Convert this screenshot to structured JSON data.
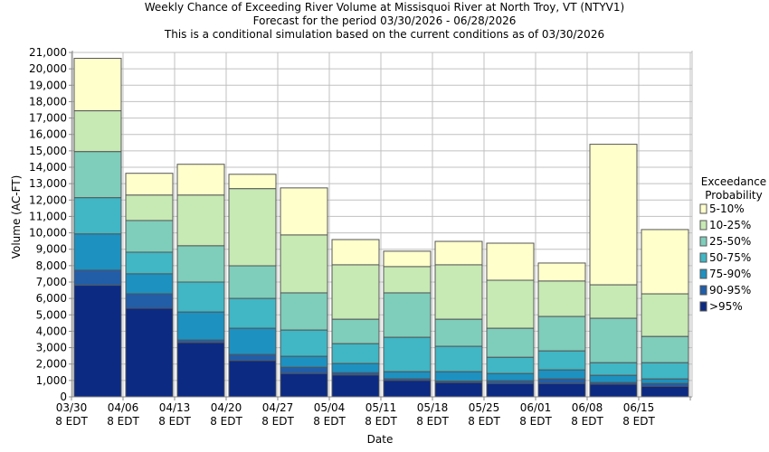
{
  "chart_data": {
    "type": "bar",
    "stacked": true,
    "title": "Weekly Chance of Exceeding River Volume at Missisquoi River at North Troy, VT (NTYV1)",
    "subtitle": [
      "Forecast for the period 03/30/2026 - 06/28/2026",
      "This is a conditional simulation based on the current conditions as of 03/30/2026"
    ],
    "xlabel": "Date",
    "ylabel": "Volume (AC-FT)",
    "ylim": [
      0,
      21000
    ],
    "yticks": [
      0,
      1000,
      2000,
      3000,
      4000,
      5000,
      6000,
      7000,
      8000,
      9000,
      10000,
      11000,
      12000,
      13000,
      14000,
      15000,
      16000,
      17000,
      18000,
      19000,
      20000,
      21000
    ],
    "ytick_labels": [
      "0",
      "1,000",
      "2,000",
      "3,000",
      "4,000",
      "5,000",
      "6,000",
      "7,000",
      "8,000",
      "9,000",
      "10,000",
      "11,000",
      "12,000",
      "13,000",
      "14,000",
      "15,000",
      "16,000",
      "17,000",
      "18,000",
      "19,000",
      "20,000",
      "21,000"
    ],
    "grid": true,
    "categories": [
      "03/30",
      "04/06",
      "04/13",
      "04/20",
      "04/27",
      "05/04",
      "05/11",
      "05/18",
      "05/25",
      "06/01",
      "06/08",
      "06/15"
    ],
    "xtick_labels": [
      "03/30",
      "04/06",
      "04/13",
      "04/20",
      "04/27",
      "05/04",
      "05/11",
      "05/18",
      "05/25",
      "06/01",
      "06/08",
      "06/15"
    ],
    "xtick_sublabel": "8 EDT",
    "legend": {
      "title": [
        "Exceedance",
        "Probability"
      ],
      "placement": "right"
    },
    "series": [
      {
        "name": ">95%",
        "color": "#0c2a82",
        "top": [
          6800,
          5400,
          3310,
          2210,
          1420,
          1330,
          1000,
          870,
          810,
          810,
          770,
          640
        ]
      },
      {
        "name": "90-95%",
        "color": "#225ea8",
        "top": [
          7720,
          6280,
          3460,
          2580,
          1800,
          1470,
          1100,
          960,
          980,
          1090,
          870,
          810
        ]
      },
      {
        "name": "75-90%",
        "color": "#1d91c0",
        "top": [
          9930,
          7500,
          5170,
          4180,
          2470,
          2030,
          1530,
          1530,
          1420,
          1640,
          1310,
          1090
        ]
      },
      {
        "name": "50-75%",
        "color": "#41b6c4",
        "top": [
          12140,
          8820,
          7000,
          6000,
          4070,
          3240,
          3630,
          3080,
          2410,
          2800,
          2080,
          2080
        ]
      },
      {
        "name": "25-50%",
        "color": "#7fcdbb",
        "top": [
          14950,
          10750,
          9210,
          7990,
          6340,
          4730,
          6340,
          4730,
          4180,
          4900,
          4790,
          3680
        ]
      },
      {
        "name": "10-25%",
        "color": "#c7e9b4",
        "top": [
          17440,
          12300,
          12300,
          12690,
          9870,
          8050,
          7940,
          8050,
          7110,
          7060,
          6830,
          6280
        ]
      },
      {
        "name": "5-10%",
        "color": "#ffffcc",
        "top": [
          20640,
          13630,
          14180,
          13570,
          12740,
          9590,
          8880,
          9480,
          9370,
          8160,
          15400,
          10200
        ]
      }
    ]
  }
}
